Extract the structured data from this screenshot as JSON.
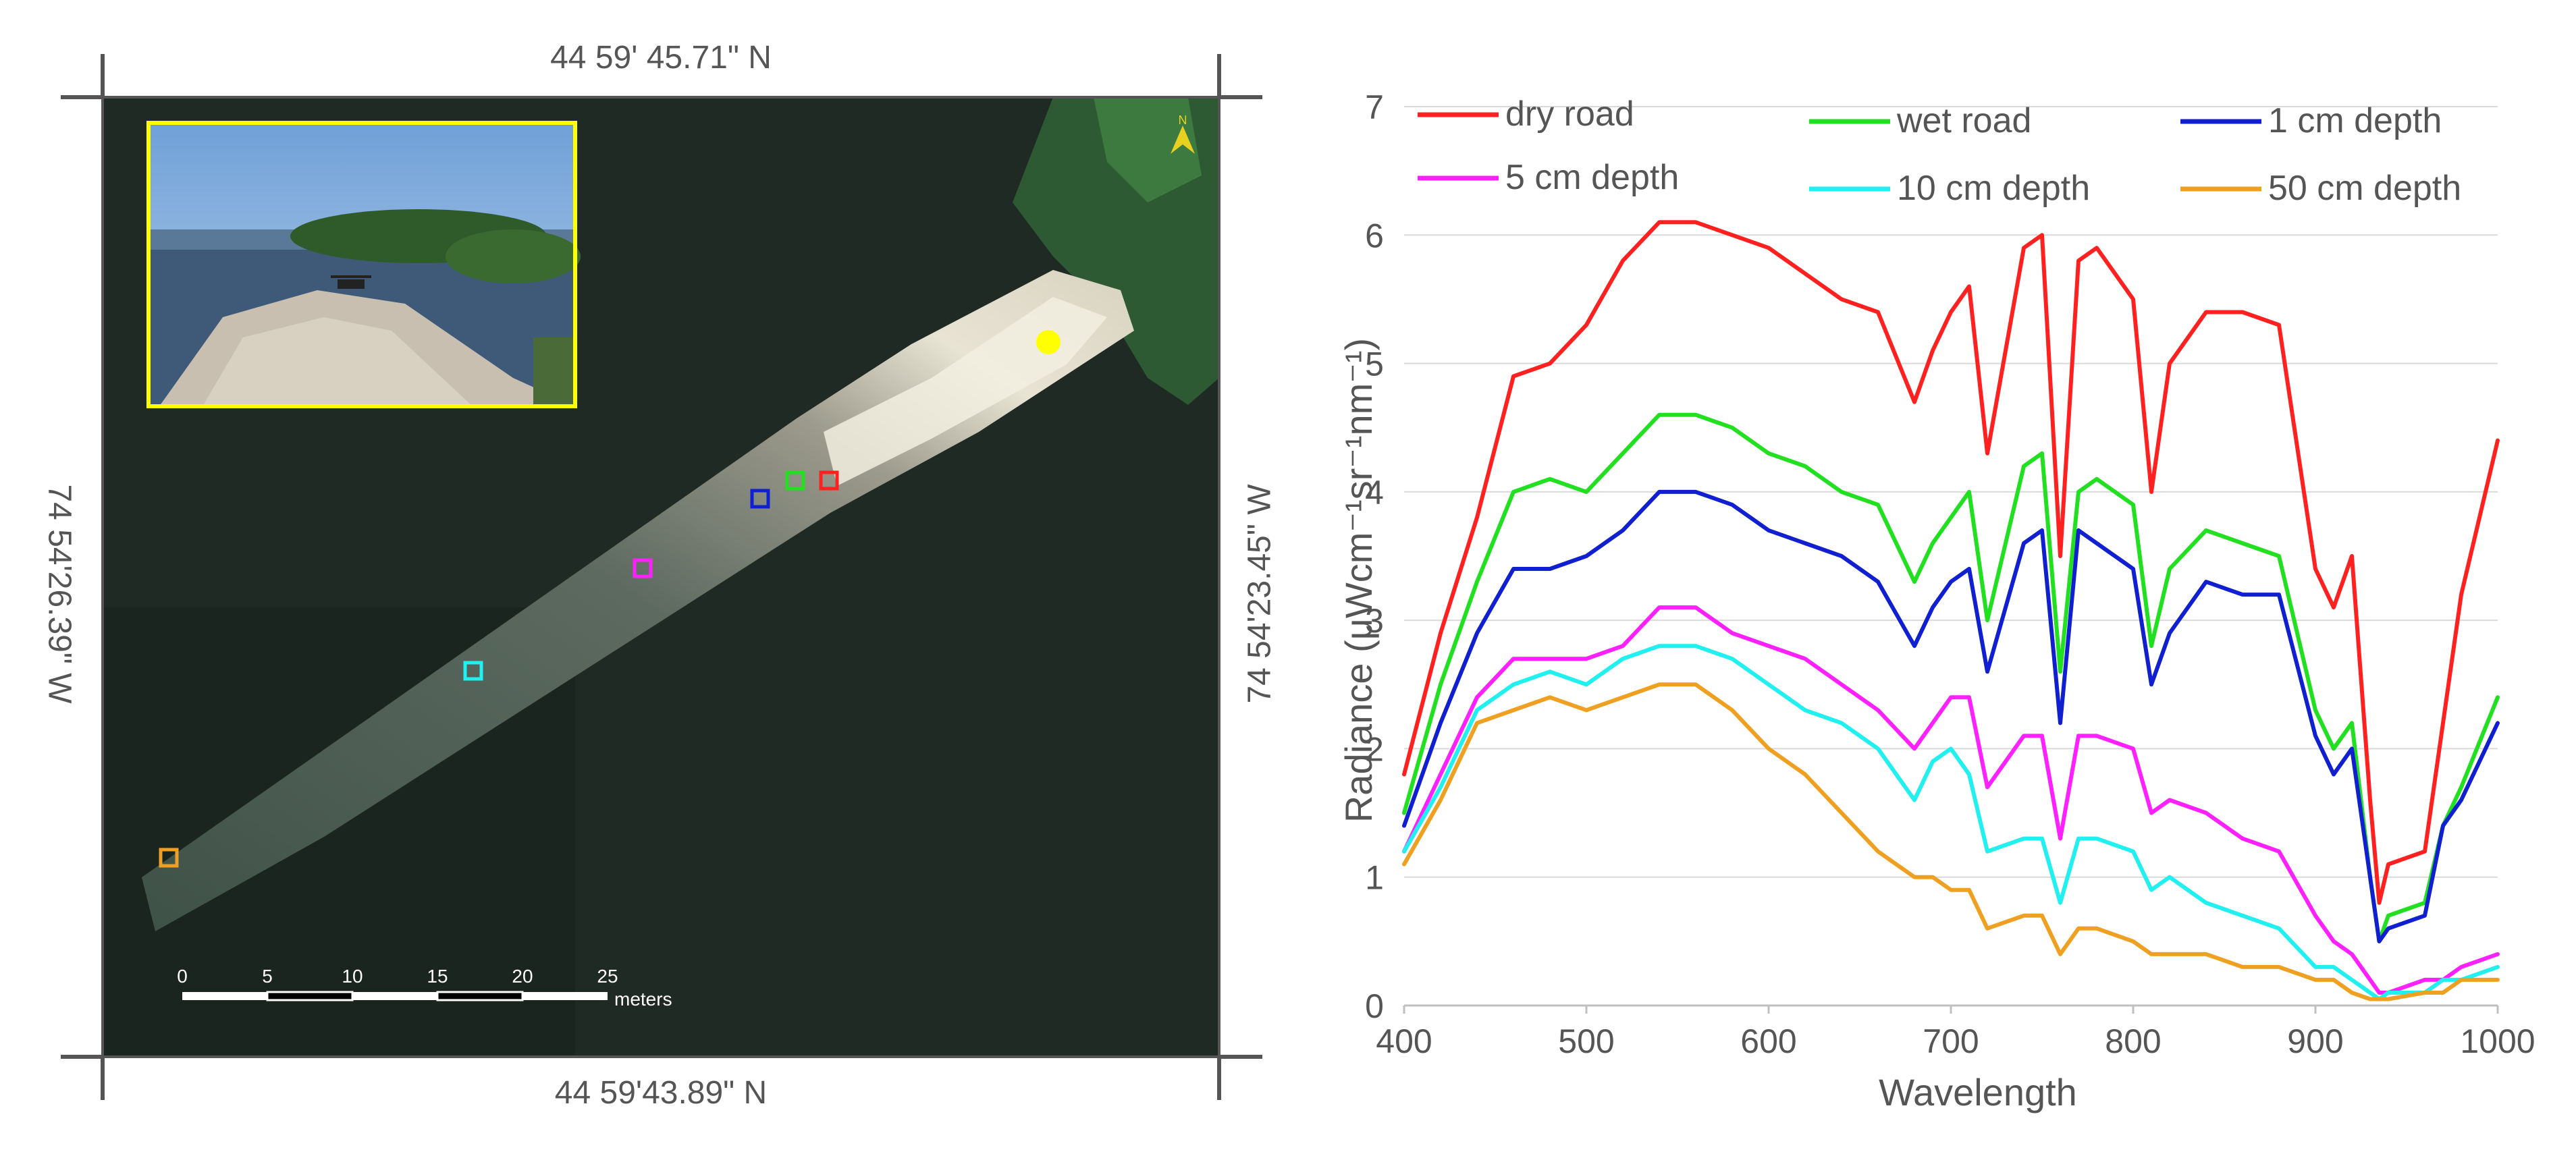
{
  "map": {
    "coord_top": "44 59' 45.71\" N",
    "coord_bottom": "44  59'43.89\" N",
    "coord_left": "74  54'26.39\" W",
    "coord_right": "74  54'23.45\" W",
    "scale_ticks": [
      "0",
      "5",
      "10",
      "15",
      "20",
      "25"
    ],
    "scale_unit": "meters",
    "markers": [
      {
        "name": "dry road",
        "color": "#ff2020"
      },
      {
        "name": "wet road",
        "color": "#20e020"
      },
      {
        "name": "1 cm depth",
        "color": "#1020d0"
      },
      {
        "name": "5 cm depth",
        "color": "#ff20ff"
      },
      {
        "name": "10 cm depth",
        "color": "#20f0f0"
      },
      {
        "name": "50 cm depth",
        "color": "#f0a020"
      }
    ],
    "photo_marker_color": "#ffff00",
    "inset_border_color": "#ffff00",
    "north_arrow_icon": "north-arrow-icon"
  },
  "chart_data": {
    "type": "line",
    "title": "",
    "xlabel": "Wavelength",
    "ylabel": "Radiance (μWcm⁻¹sr⁻¹nm⁻¹)",
    "xlim": [
      400,
      1000
    ],
    "ylim": [
      0,
      7
    ],
    "x_ticks": [
      400,
      500,
      600,
      700,
      800,
      900,
      1000
    ],
    "y_ticks": [
      0,
      1,
      2,
      3,
      4,
      5,
      6,
      7
    ],
    "grid": "horizontal",
    "legend_position": "top",
    "x": [
      400,
      420,
      440,
      460,
      480,
      500,
      520,
      540,
      560,
      580,
      600,
      620,
      640,
      660,
      680,
      690,
      700,
      710,
      720,
      740,
      750,
      760,
      770,
      780,
      800,
      810,
      820,
      840,
      860,
      880,
      900,
      910,
      920,
      930,
      935,
      940,
      960,
      970,
      980,
      1000
    ],
    "series": [
      {
        "name": "dry road",
        "color": "#ff2020",
        "values": [
          1.8,
          2.9,
          3.8,
          4.9,
          5.0,
          5.3,
          5.8,
          6.1,
          6.1,
          6.0,
          5.9,
          5.7,
          5.5,
          5.4,
          4.7,
          5.1,
          5.4,
          5.6,
          4.3,
          5.9,
          6.0,
          3.5,
          5.8,
          5.9,
          5.5,
          4.0,
          5.0,
          5.4,
          5.4,
          5.3,
          3.4,
          3.1,
          3.5,
          1.6,
          0.8,
          1.1,
          1.2,
          2.2,
          3.2,
          4.4
        ]
      },
      {
        "name": "wet road",
        "color": "#20e020",
        "values": [
          1.5,
          2.5,
          3.3,
          4.0,
          4.1,
          4.0,
          4.3,
          4.6,
          4.6,
          4.5,
          4.3,
          4.2,
          4.0,
          3.9,
          3.3,
          3.6,
          3.8,
          4.0,
          3.0,
          4.2,
          4.3,
          2.6,
          4.0,
          4.1,
          3.9,
          2.8,
          3.4,
          3.7,
          3.6,
          3.5,
          2.3,
          2.0,
          2.2,
          1.0,
          0.5,
          0.7,
          0.8,
          1.4,
          1.7,
          2.4
        ]
      },
      {
        "name": "1 cm depth",
        "color": "#1020d0",
        "values": [
          1.4,
          2.2,
          2.9,
          3.4,
          3.4,
          3.5,
          3.7,
          4.0,
          4.0,
          3.9,
          3.7,
          3.6,
          3.5,
          3.3,
          2.8,
          3.1,
          3.3,
          3.4,
          2.6,
          3.6,
          3.7,
          2.2,
          3.7,
          3.6,
          3.4,
          2.5,
          2.9,
          3.3,
          3.2,
          3.2,
          2.1,
          1.8,
          2.0,
          1.0,
          0.5,
          0.6,
          0.7,
          1.4,
          1.6,
          2.2
        ]
      },
      {
        "name": "5 cm depth",
        "color": "#ff20ff",
        "values": [
          1.2,
          1.8,
          2.4,
          2.7,
          2.7,
          2.7,
          2.8,
          3.1,
          3.1,
          2.9,
          2.8,
          2.7,
          2.5,
          2.3,
          2.0,
          2.2,
          2.4,
          2.4,
          1.7,
          2.1,
          2.1,
          1.3,
          2.1,
          2.1,
          2.0,
          1.5,
          1.6,
          1.5,
          1.3,
          1.2,
          0.7,
          0.5,
          0.4,
          0.2,
          0.1,
          0.1,
          0.2,
          0.2,
          0.3,
          0.4
        ]
      },
      {
        "name": "10 cm depth",
        "color": "#20f0f0",
        "values": [
          1.2,
          1.7,
          2.3,
          2.5,
          2.6,
          2.5,
          2.7,
          2.8,
          2.8,
          2.7,
          2.5,
          2.3,
          2.2,
          2.0,
          1.6,
          1.9,
          2.0,
          1.8,
          1.2,
          1.3,
          1.3,
          0.8,
          1.3,
          1.3,
          1.2,
          0.9,
          1.0,
          0.8,
          0.7,
          0.6,
          0.3,
          0.3,
          0.2,
          0.1,
          0.05,
          0.1,
          0.1,
          0.2,
          0.2,
          0.3
        ]
      },
      {
        "name": "50 cm depth",
        "color": "#f0a020",
        "values": [
          1.1,
          1.6,
          2.2,
          2.3,
          2.4,
          2.3,
          2.4,
          2.5,
          2.5,
          2.3,
          2.0,
          1.8,
          1.5,
          1.2,
          1.0,
          1.0,
          0.9,
          0.9,
          0.6,
          0.7,
          0.7,
          0.4,
          0.6,
          0.6,
          0.5,
          0.4,
          0.4,
          0.4,
          0.3,
          0.3,
          0.2,
          0.2,
          0.1,
          0.05,
          0.05,
          0.05,
          0.1,
          0.1,
          0.2,
          0.2
        ]
      }
    ]
  }
}
